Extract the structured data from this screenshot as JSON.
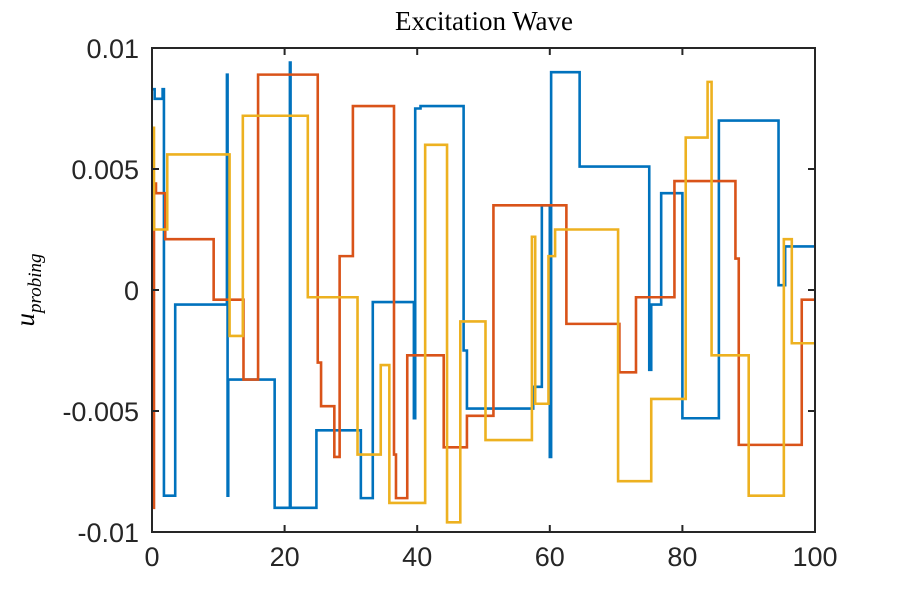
{
  "chart_data": {
    "type": "line",
    "title": "Excitation Wave",
    "ylabel": "u",
    "ylabel_subscript": "probing",
    "xlim": [
      0,
      100
    ],
    "ylim": [
      -0.01,
      0.01
    ],
    "xticks": [
      0,
      20,
      40,
      60,
      80,
      100
    ],
    "yticks": [
      -0.01,
      -0.005,
      0,
      0.005,
      0.01
    ],
    "box": true,
    "series": [
      {
        "color": "#0072BD",
        "x": [
          0,
          0.4,
          0.4,
          1.6,
          1.6,
          1.8,
          1.8,
          3.5,
          3.5,
          11.3,
          11.3,
          11.4,
          11.4,
          11.5,
          11.5,
          18.5,
          18.5,
          20.8,
          20.8,
          20.9,
          20.9,
          24.8,
          24.8,
          31.5,
          31.5,
          33.3,
          33.3,
          39.5,
          39.5,
          39.7,
          39.7,
          40.5,
          40.5,
          47,
          47,
          47.5,
          47.5,
          57.5,
          57.5,
          58.8,
          58.8,
          60,
          60,
          60.2,
          60.2,
          64.5,
          64.5,
          75,
          75,
          75.3,
          75.3,
          76.8,
          76.8,
          80,
          80,
          85.5,
          85.5,
          94.5,
          94.5,
          95.5,
          95.5,
          100
        ],
        "values": [
          0.0083,
          0.0083,
          0.0079,
          0.0079,
          0.0083,
          0.0083,
          -0.0085,
          -0.0085,
          -0.0006,
          -0.0006,
          0.0089,
          0.0089,
          -0.0085,
          -0.0085,
          -0.0037,
          -0.0037,
          -0.009,
          -0.009,
          0.0094,
          0.0094,
          -0.009,
          -0.009,
          -0.0058,
          -0.0058,
          -0.0086,
          -0.0086,
          -0.0005,
          -0.0005,
          -0.0053,
          -0.0053,
          0.0075,
          0.0075,
          0.0076,
          0.0076,
          -0.0025,
          -0.0025,
          -0.0049,
          -0.0049,
          -0.004,
          -0.004,
          0.0035,
          0.0035,
          -0.0069,
          -0.0069,
          0.009,
          0.009,
          0.0051,
          0.0051,
          -0.0033,
          -0.0033,
          -0.0006,
          -0.0006,
          0.004,
          0.004,
          -0.0053,
          -0.0053,
          0.007,
          0.007,
          0.0002,
          0.0002,
          0.0018,
          0.0018
        ]
      },
      {
        "color": "#D95319",
        "x": [
          0,
          0.3,
          0.3,
          0.6,
          0.6,
          2,
          2,
          9.3,
          9.3,
          13.8,
          13.8,
          16,
          16,
          25,
          25,
          25.5,
          25.5,
          27.5,
          27.5,
          28.3,
          28.3,
          30.3,
          30.3,
          36.5,
          36.5,
          36.8,
          36.8,
          38.5,
          38.5,
          44,
          44,
          47.5,
          47.5,
          51.5,
          51.5,
          62.5,
          62.5,
          70.5,
          70.5,
          73,
          73,
          78.8,
          78.8,
          88,
          88,
          88.5,
          88.5,
          98,
          98,
          100
        ],
        "values": [
          -0.009,
          -0.009,
          0.0044,
          0.0044,
          0.004,
          0.004,
          0.0021,
          0.0021,
          -0.0004,
          -0.0004,
          -0.0037,
          -0.0037,
          0.0089,
          0.0089,
          -0.003,
          -0.003,
          -0.0048,
          -0.0048,
          -0.0069,
          -0.0069,
          0.0014,
          0.0014,
          0.0076,
          0.0076,
          -0.0068,
          -0.0068,
          -0.0086,
          -0.0086,
          -0.0027,
          -0.0027,
          -0.0065,
          -0.0065,
          -0.0052,
          -0.0052,
          0.0035,
          0.0035,
          -0.0014,
          -0.0014,
          -0.0034,
          -0.0034,
          -0.0003,
          -0.0003,
          0.0045,
          0.0045,
          0.0013,
          0.0013,
          -0.0064,
          -0.0064,
          -0.0004,
          -0.0004
        ]
      },
      {
        "color": "#EDB120",
        "x": [
          0,
          0.3,
          0.3,
          2.3,
          2.3,
          11.7,
          11.7,
          13.7,
          13.7,
          23.5,
          23.5,
          31,
          31,
          34.5,
          34.5,
          35.8,
          35.8,
          41.2,
          41.2,
          44.5,
          44.5,
          46.5,
          46.5,
          50.3,
          50.3,
          57.3,
          57.3,
          57.8,
          57.8,
          59.8,
          59.8,
          60.8,
          60.8,
          70.3,
          70.3,
          75.3,
          75.3,
          80.5,
          80.5,
          83.8,
          83.8,
          84.4,
          84.4,
          90,
          90,
          95.3,
          95.3,
          96.5,
          96.5,
          100
        ],
        "values": [
          0.0067,
          0.0067,
          0.0025,
          0.0025,
          0.0056,
          0.0056,
          -0.0019,
          -0.0019,
          0.0072,
          0.0072,
          -0.0003,
          -0.0003,
          -0.0068,
          -0.0068,
          -0.0031,
          -0.0031,
          -0.0088,
          -0.0088,
          0.006,
          0.006,
          -0.0096,
          -0.0096,
          -0.0013,
          -0.0013,
          -0.0062,
          -0.0062,
          0.0022,
          0.0022,
          -0.0047,
          -0.0047,
          0.0014,
          0.0014,
          0.0025,
          0.0025,
          -0.0079,
          -0.0079,
          -0.0045,
          -0.0045,
          0.0063,
          0.0063,
          0.0086,
          0.0086,
          -0.0027,
          -0.0027,
          -0.0085,
          -0.0085,
          0.0021,
          0.0021,
          -0.0022,
          -0.0022
        ]
      }
    ]
  }
}
